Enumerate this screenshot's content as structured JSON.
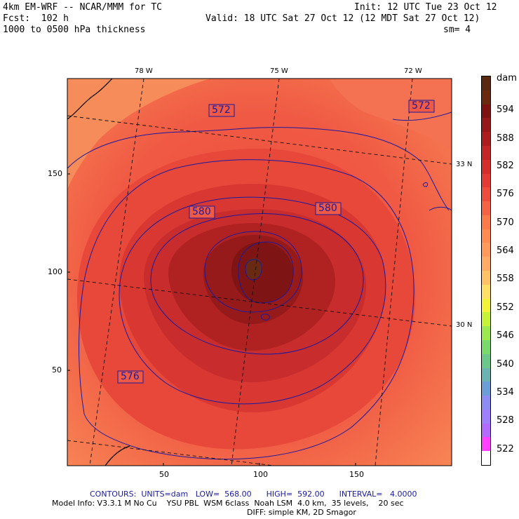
{
  "header": {
    "model": "4km EM-WRF -- NCAR/MMM for TC",
    "init": "Init: 12 UTC Tue 23 Oct 12",
    "forecast": "Fcst:  102 h",
    "valid": "Valid: 18 UTC Sat 27 Oct 12 (12 MDT Sat 27 Oct 12)",
    "field": "1000 to 0500 hPa thickness",
    "smoothing": "sm= 4"
  },
  "map": {
    "lon_labels": [
      "78 W",
      "75 W",
      "72 W"
    ],
    "lat_labels": [
      "33 N",
      "30 N"
    ],
    "x_ticks": [
      "50",
      "100",
      "150"
    ],
    "y_ticks": [
      "150",
      "100",
      "50"
    ],
    "contour_labels": [
      "572",
      "572",
      "580",
      "580",
      "576"
    ]
  },
  "colorbar": {
    "unit": "dam",
    "labels": [
      "594",
      "588",
      "582",
      "576",
      "570",
      "564",
      "558",
      "552",
      "546",
      "540",
      "534",
      "528",
      "522"
    ],
    "colors": [
      "#ffffff",
      "#ff40ff",
      "#b36bff",
      "#9e80ff",
      "#8c8cf2",
      "#6b9ed6",
      "#6bb3b3",
      "#6bc78a",
      "#7ad96b",
      "#9ee84f",
      "#c7f23a",
      "#f2f23a",
      "#ffe066",
      "#ffc266",
      "#ffab66",
      "#ff9a5c",
      "#ff8a52",
      "#fa7a4a",
      "#f46444",
      "#ee4c3c",
      "#e23a34",
      "#d42e2c",
      "#c22626",
      "#ac1e1e",
      "#961818",
      "#7e1212",
      "#6a2a10",
      "#5a2a10"
    ]
  },
  "footer": {
    "contours": "CONTOURS:  UNITS=dam   LOW=  568.00      HIGH=  592.00      INTERVAL=   4.0000",
    "model_info": "Model Info: V3.3.1 M No Cu    YSU PBL  WSM 6class  Noah LSM  4.0 km,  35 levels,    20 sec",
    "diff": "DIFF: simple KM, 2D Smagor"
  }
}
